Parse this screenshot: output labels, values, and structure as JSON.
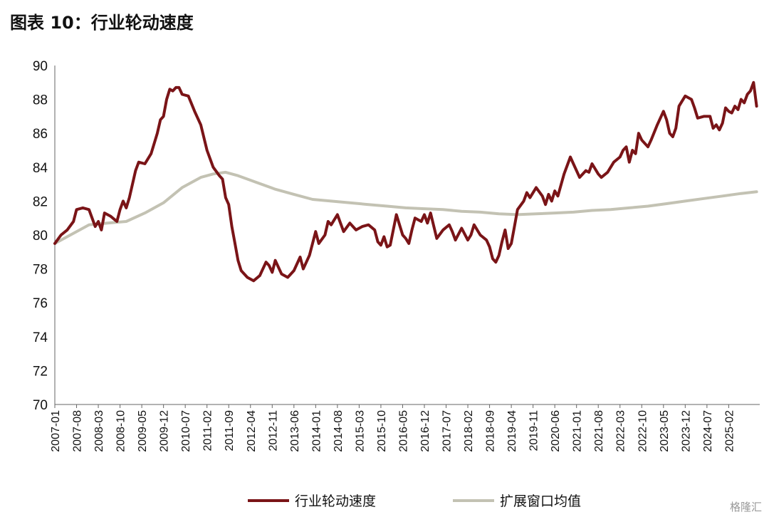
{
  "title": "图表 10：行业轮动速度",
  "watermark": "格隆汇",
  "chart_data": {
    "type": "line",
    "ylim": [
      70,
      90
    ],
    "yticks": [
      70,
      72,
      74,
      76,
      78,
      80,
      82,
      84,
      86,
      88,
      90
    ],
    "xticks": [
      "2007-01",
      "2007-08",
      "2008-03",
      "2008-10",
      "2009-05",
      "2009-12",
      "2010-07",
      "2011-02",
      "2011-09",
      "2012-04",
      "2012-11",
      "2013-06",
      "2014-01",
      "2014-08",
      "2015-03",
      "2015-10",
      "2016-05",
      "2016-12",
      "2017-07",
      "2018-02",
      "2018-09",
      "2019-04",
      "2019-11",
      "2020-06",
      "2021-01",
      "2021-08",
      "2022-03",
      "2022-10",
      "2023-05",
      "2023-12",
      "2024-07",
      "2025-02"
    ],
    "grid": false,
    "legend_position": "bottom",
    "series": [
      {
        "name": "行业轮动速度",
        "color": "#7a1417",
        "points": [
          [
            "2007-01",
            79.5
          ],
          [
            "2007-03",
            80.0
          ],
          [
            "2007-05",
            80.3
          ],
          [
            "2007-07",
            80.8
          ],
          [
            "2007-08",
            81.5
          ],
          [
            "2007-10",
            81.6
          ],
          [
            "2007-12",
            81.5
          ],
          [
            "2008-02",
            80.5
          ],
          [
            "2008-03",
            80.8
          ],
          [
            "2008-04",
            80.3
          ],
          [
            "2008-05",
            81.3
          ],
          [
            "2008-07",
            81.1
          ],
          [
            "2008-09",
            80.8
          ],
          [
            "2008-10",
            81.5
          ],
          [
            "2008-11",
            82.0
          ],
          [
            "2008-12",
            81.6
          ],
          [
            "2009-01",
            82.2
          ],
          [
            "2009-03",
            83.8
          ],
          [
            "2009-04",
            84.3
          ],
          [
            "2009-06",
            84.2
          ],
          [
            "2009-08",
            84.8
          ],
          [
            "2009-10",
            86.0
          ],
          [
            "2009-11",
            86.8
          ],
          [
            "2009-12",
            87.0
          ],
          [
            "2010-01",
            88.0
          ],
          [
            "2010-02",
            88.6
          ],
          [
            "2010-03",
            88.5
          ],
          [
            "2010-04",
            88.7
          ],
          [
            "2010-05",
            88.7
          ],
          [
            "2010-06",
            88.3
          ],
          [
            "2010-08",
            88.2
          ],
          [
            "2010-10",
            87.3
          ],
          [
            "2010-12",
            86.5
          ],
          [
            "2011-02",
            85.0
          ],
          [
            "2011-04",
            84.0
          ],
          [
            "2011-06",
            83.5
          ],
          [
            "2011-07",
            83.3
          ],
          [
            "2011-08",
            82.2
          ],
          [
            "2011-09",
            81.8
          ],
          [
            "2011-10",
            80.5
          ],
          [
            "2011-11",
            79.5
          ],
          [
            "2011-12",
            78.5
          ],
          [
            "2012-01",
            77.9
          ],
          [
            "2012-03",
            77.5
          ],
          [
            "2012-05",
            77.3
          ],
          [
            "2012-07",
            77.6
          ],
          [
            "2012-09",
            78.4
          ],
          [
            "2012-10",
            78.2
          ],
          [
            "2012-11",
            77.8
          ],
          [
            "2012-12",
            78.5
          ],
          [
            "2013-02",
            77.7
          ],
          [
            "2013-04",
            77.5
          ],
          [
            "2013-06",
            77.9
          ],
          [
            "2013-08",
            78.7
          ],
          [
            "2013-09",
            78.0
          ],
          [
            "2013-11",
            78.8
          ],
          [
            "2014-01",
            80.2
          ],
          [
            "2014-02",
            79.5
          ],
          [
            "2014-04",
            80.0
          ],
          [
            "2014-05",
            80.8
          ],
          [
            "2014-06",
            80.6
          ],
          [
            "2014-08",
            81.2
          ],
          [
            "2014-09",
            80.7
          ],
          [
            "2014-10",
            80.2
          ],
          [
            "2014-12",
            80.7
          ],
          [
            "2015-02",
            80.3
          ],
          [
            "2015-04",
            80.5
          ],
          [
            "2015-06",
            80.6
          ],
          [
            "2015-08",
            80.3
          ],
          [
            "2015-09",
            79.6
          ],
          [
            "2015-10",
            79.4
          ],
          [
            "2015-11",
            79.9
          ],
          [
            "2015-12",
            79.3
          ],
          [
            "2016-01",
            79.4
          ],
          [
            "2016-03",
            81.2
          ],
          [
            "2016-05",
            80.0
          ],
          [
            "2016-06",
            79.8
          ],
          [
            "2016-07",
            79.5
          ],
          [
            "2016-08",
            80.3
          ],
          [
            "2016-09",
            81.0
          ],
          [
            "2016-11",
            80.8
          ],
          [
            "2016-12",
            81.2
          ],
          [
            "2017-01",
            80.7
          ],
          [
            "2017-02",
            81.3
          ],
          [
            "2017-04",
            79.8
          ],
          [
            "2017-06",
            80.3
          ],
          [
            "2017-08",
            80.6
          ],
          [
            "2017-09",
            80.2
          ],
          [
            "2017-10",
            79.7
          ],
          [
            "2017-12",
            80.4
          ],
          [
            "2018-02",
            79.7
          ],
          [
            "2018-03",
            80.0
          ],
          [
            "2018-04",
            80.6
          ],
          [
            "2018-06",
            80.0
          ],
          [
            "2018-08",
            79.7
          ],
          [
            "2018-09",
            79.3
          ],
          [
            "2018-10",
            78.6
          ],
          [
            "2018-11",
            78.4
          ],
          [
            "2018-12",
            78.8
          ],
          [
            "2019-01",
            79.6
          ],
          [
            "2019-02",
            80.3
          ],
          [
            "2019-03",
            79.2
          ],
          [
            "2019-04",
            79.5
          ],
          [
            "2019-05",
            80.5
          ],
          [
            "2019-06",
            81.5
          ],
          [
            "2019-08",
            82.0
          ],
          [
            "2019-09",
            82.5
          ],
          [
            "2019-10",
            82.2
          ],
          [
            "2019-12",
            82.8
          ],
          [
            "2020-02",
            82.3
          ],
          [
            "2020-03",
            81.8
          ],
          [
            "2020-04",
            82.4
          ],
          [
            "2020-05",
            82.0
          ],
          [
            "2020-06",
            82.6
          ],
          [
            "2020-07",
            82.3
          ],
          [
            "2020-09",
            83.6
          ],
          [
            "2020-11",
            84.6
          ],
          [
            "2020-12",
            84.2
          ],
          [
            "2021-02",
            83.4
          ],
          [
            "2021-04",
            83.8
          ],
          [
            "2021-05",
            83.7
          ],
          [
            "2021-06",
            84.2
          ],
          [
            "2021-08",
            83.6
          ],
          [
            "2021-09",
            83.4
          ],
          [
            "2021-11",
            83.7
          ],
          [
            "2022-01",
            84.3
          ],
          [
            "2022-03",
            84.6
          ],
          [
            "2022-04",
            85.0
          ],
          [
            "2022-05",
            85.2
          ],
          [
            "2022-06",
            84.3
          ],
          [
            "2022-07",
            85.0
          ],
          [
            "2022-08",
            84.8
          ],
          [
            "2022-09",
            86.0
          ],
          [
            "2022-10",
            85.6
          ],
          [
            "2022-12",
            85.2
          ],
          [
            "2023-01",
            85.6
          ],
          [
            "2023-03",
            86.5
          ],
          [
            "2023-05",
            87.3
          ],
          [
            "2023-06",
            86.8
          ],
          [
            "2023-07",
            86.0
          ],
          [
            "2023-08",
            85.8
          ],
          [
            "2023-09",
            86.3
          ],
          [
            "2023-10",
            87.6
          ],
          [
            "2023-12",
            88.2
          ],
          [
            "2024-02",
            88.0
          ],
          [
            "2024-03",
            87.5
          ],
          [
            "2024-04",
            86.9
          ],
          [
            "2024-06",
            87.0
          ],
          [
            "2024-08",
            87.0
          ],
          [
            "2024-09",
            86.3
          ],
          [
            "2024-10",
            86.5
          ],
          [
            "2024-11",
            86.2
          ],
          [
            "2024-12",
            86.6
          ],
          [
            "2025-01",
            87.5
          ],
          [
            "2025-02",
            87.3
          ],
          [
            "2025-03",
            87.2
          ],
          [
            "2025-04",
            87.6
          ],
          [
            "2025-05",
            87.4
          ],
          [
            "2025-06",
            88.0
          ],
          [
            "2025-07",
            87.8
          ],
          [
            "2025-08",
            88.3
          ],
          [
            "2025-09",
            88.5
          ],
          [
            "2025-10",
            89.0
          ],
          [
            "2025-11",
            87.6
          ]
        ]
      },
      {
        "name": "扩展窗口均值",
        "color": "#c3c2b3",
        "points": [
          [
            "2007-01",
            79.5
          ],
          [
            "2007-06",
            80.0
          ],
          [
            "2007-12",
            80.6
          ],
          [
            "2008-06",
            80.7
          ],
          [
            "2008-12",
            80.8
          ],
          [
            "2009-06",
            81.3
          ],
          [
            "2009-12",
            81.9
          ],
          [
            "2010-06",
            82.8
          ],
          [
            "2010-12",
            83.4
          ],
          [
            "2011-04",
            83.6
          ],
          [
            "2011-08",
            83.7
          ],
          [
            "2011-12",
            83.5
          ],
          [
            "2012-06",
            83.1
          ],
          [
            "2012-12",
            82.7
          ],
          [
            "2013-06",
            82.4
          ],
          [
            "2013-12",
            82.1
          ],
          [
            "2014-06",
            82.0
          ],
          [
            "2014-12",
            81.9
          ],
          [
            "2015-06",
            81.8
          ],
          [
            "2015-12",
            81.7
          ],
          [
            "2016-06",
            81.6
          ],
          [
            "2016-12",
            81.55
          ],
          [
            "2017-06",
            81.5
          ],
          [
            "2017-12",
            81.4
          ],
          [
            "2018-06",
            81.35
          ],
          [
            "2018-12",
            81.25
          ],
          [
            "2019-06",
            81.2
          ],
          [
            "2019-12",
            81.25
          ],
          [
            "2020-06",
            81.3
          ],
          [
            "2020-12",
            81.35
          ],
          [
            "2021-06",
            81.45
          ],
          [
            "2021-12",
            81.5
          ],
          [
            "2022-06",
            81.6
          ],
          [
            "2022-12",
            81.7
          ],
          [
            "2023-06",
            81.85
          ],
          [
            "2023-12",
            82.0
          ],
          [
            "2024-06",
            82.15
          ],
          [
            "2024-12",
            82.3
          ],
          [
            "2025-06",
            82.45
          ],
          [
            "2025-11",
            82.55
          ]
        ]
      }
    ]
  }
}
